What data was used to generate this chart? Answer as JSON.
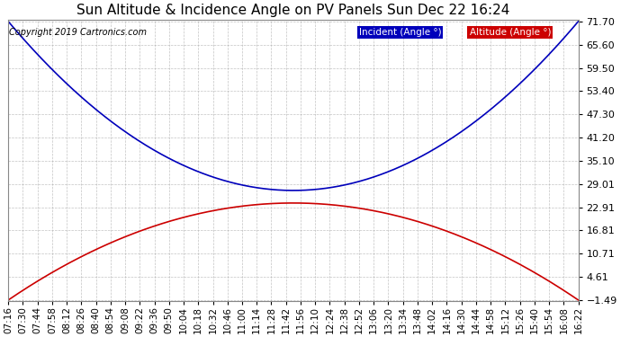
{
  "title": "Sun Altitude & Incidence Angle on PV Panels Sun Dec 22 16:24",
  "copyright": "Copyright 2019 Cartronics.com",
  "yticks": [
    71.7,
    65.6,
    59.5,
    53.4,
    47.3,
    41.2,
    35.1,
    29.01,
    22.91,
    16.81,
    10.71,
    4.61,
    -1.49
  ],
  "ymin": -1.49,
  "ymax": 71.7,
  "incident_color": "#0000bb",
  "altitude_color": "#cc0000",
  "legend_incident_label": "Incident (Angle °)",
  "legend_altitude_label": "Altitude (Angle °)",
  "background_color": "#ffffff",
  "grid_color": "#aaaaaa",
  "time_start_minutes": 436,
  "time_end_minutes": 982,
  "incident_min": 27.3,
  "incident_max": 71.7,
  "altitude_max": 24.0,
  "altitude_min": -1.49,
  "xtick_minutes": [
    436,
    450,
    464,
    478,
    492,
    506,
    520,
    534,
    548,
    562,
    576,
    590,
    604,
    618,
    632,
    646,
    660,
    674,
    688,
    702,
    716,
    730,
    744,
    758,
    772,
    786,
    800,
    814,
    828,
    842,
    856,
    870,
    884,
    898,
    912,
    926,
    940,
    954,
    968,
    982
  ],
  "title_fontsize": 11,
  "tick_fontsize": 7.5,
  "copyright_fontsize": 7,
  "ylabel_fontsize": 8
}
